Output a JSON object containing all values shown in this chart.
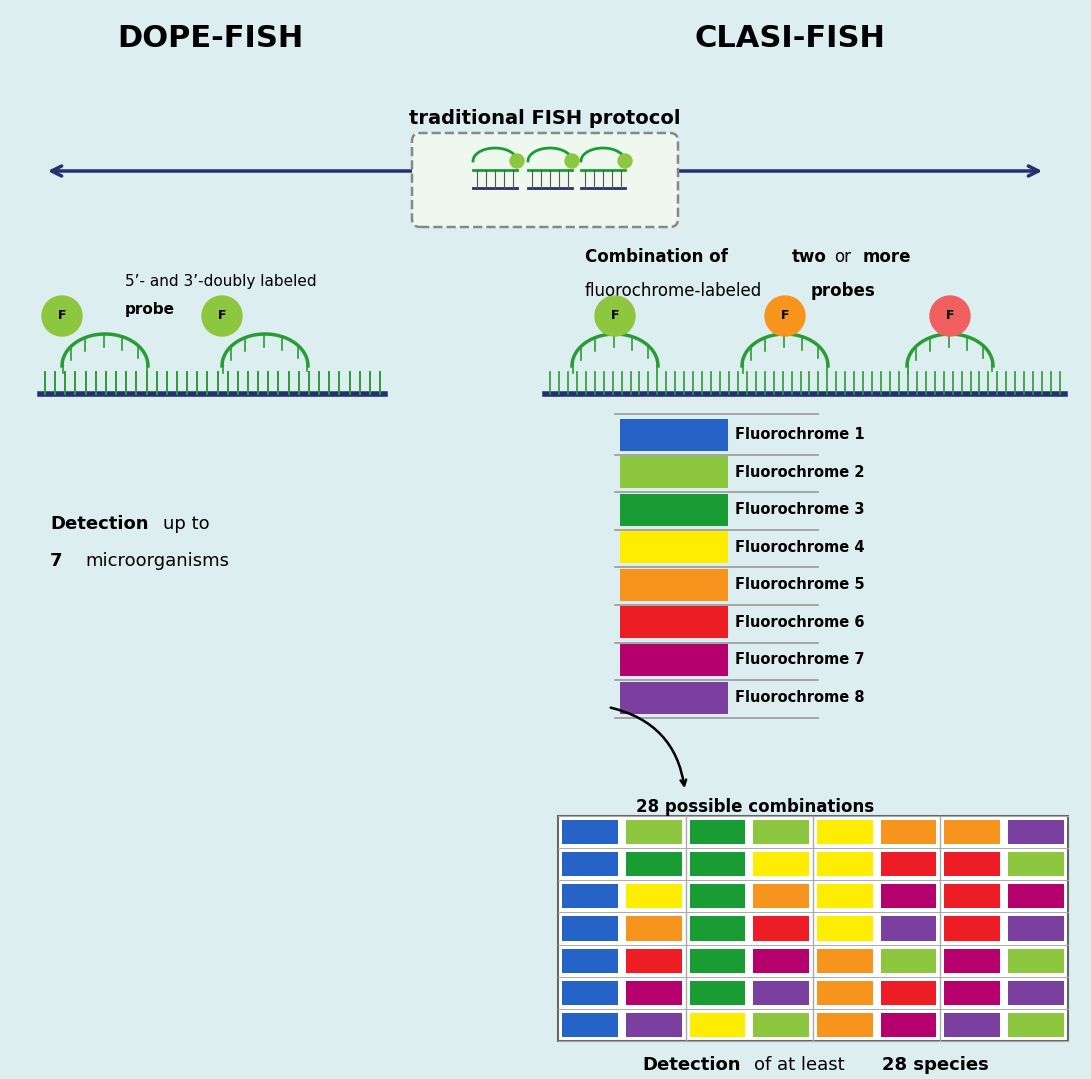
{
  "bg_color": "#dceef0",
  "title_left": "DOPE-FISH",
  "title_right": "CLASI-FISH",
  "arrow_text": "traditional FISH protocol",
  "left_probe_label1": "5’- and 3’-doubly labeled",
  "left_probe_label2": "probe",
  "right_combo_bold1": "Combination of",
  "right_combo_bold2": "two",
  "right_combo_plain1": "or",
  "right_combo_bold3": "more",
  "right_combo_plain2": "fluorochrome-labeled",
  "right_combo_bold4": "probes",
  "fluoro_colors": [
    "#2563c7",
    "#8dc63f",
    "#1a9c35",
    "#ffed00",
    "#f7941d",
    "#ee1c25",
    "#b5006e",
    "#7b3fa0"
  ],
  "fluoro_labels": [
    "Fluorochrome 1",
    "Fluorochrome 2",
    "Fluorochrome 3",
    "Fluorochrome 4",
    "Fluorochrome 5",
    "Fluorochrome 6",
    "Fluorochrome 7",
    "Fluorochrome 8"
  ],
  "fluoro_f_colors": [
    "#8dc63f",
    "#f7941d",
    "#f06060"
  ],
  "combo_label": "28 possible combinations",
  "grid_rows": [
    [
      "#2563c7",
      "#8dc63f",
      "#1a9c35",
      "#8dc63f",
      "#ffed00",
      "#f7941d",
      "#f7941d",
      "#7b3fa0"
    ],
    [
      "#2563c7",
      "#1a9c35",
      "#1a9c35",
      "#ffed00",
      "#ffed00",
      "#ee1c25",
      "#ee1c25",
      "#8dc63f"
    ],
    [
      "#2563c7",
      "#ffed00",
      "#1a9c35",
      "#f7941d",
      "#ffed00",
      "#b5006e",
      "#ee1c25",
      "#b5006e"
    ],
    [
      "#2563c7",
      "#f7941d",
      "#1a9c35",
      "#ee1c25",
      "#ffed00",
      "#7b3fa0",
      "#ee1c25",
      "#7b3fa0"
    ],
    [
      "#2563c7",
      "#ee1c25",
      "#1a9c35",
      "#b5006e",
      "#f7941d",
      "#8dc63f",
      "#b5006e",
      "#8dc63f"
    ],
    [
      "#2563c7",
      "#b5006e",
      "#1a9c35",
      "#7b3fa0",
      "#f7941d",
      "#ee1c25",
      "#b5006e",
      "#7b3fa0"
    ],
    [
      "#2563c7",
      "#7b3fa0",
      "#ffed00",
      "#8dc63f",
      "#f7941d",
      "#b5006e",
      "#7b3fa0",
      "#8dc63f"
    ]
  ]
}
